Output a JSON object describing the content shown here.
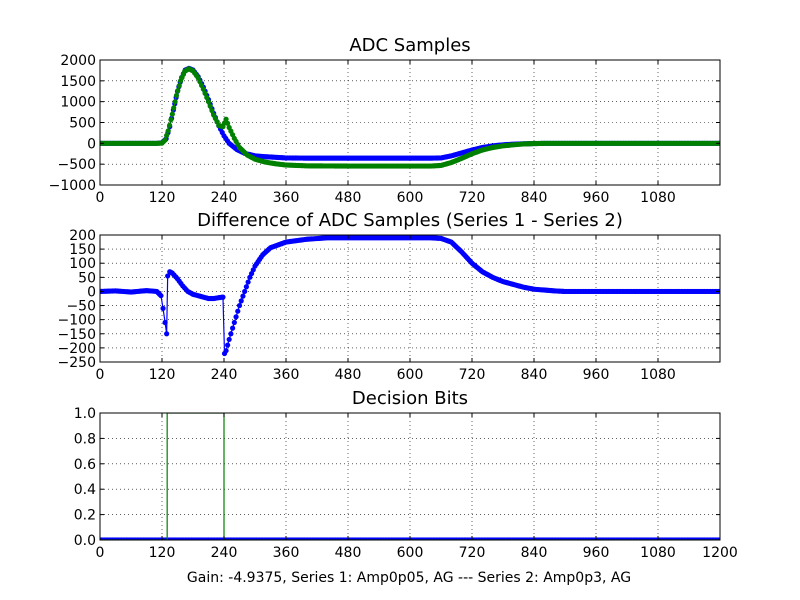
{
  "caption": "Gain: -4.9375, Series 1: Amp0p05, AG --- Series 2: Amp0p3, AG",
  "chart_data": [
    {
      "type": "line",
      "title": "ADC Samples",
      "xlabel": "",
      "ylabel": "",
      "xlim": [
        0,
        1200
      ],
      "ylim": [
        -1000,
        2000
      ],
      "grid": true,
      "xticks": [
        0,
        120,
        240,
        360,
        480,
        600,
        720,
        840,
        960,
        1080
      ],
      "yticks": [
        -1000,
        -500,
        0,
        500,
        1000,
        1500,
        2000
      ],
      "xtick_labels": [
        "0",
        "120",
        "240",
        "360",
        "480",
        "600",
        "720",
        "840",
        "960",
        "1080"
      ],
      "ytick_labels": [
        "−1000",
        "−500",
        "0",
        "500",
        "1000",
        "1500",
        "2000"
      ],
      "series": [
        {
          "name": "Series 1",
          "color": "#0000ff",
          "marker": "dot",
          "points": [
            [
              0,
              0
            ],
            [
              110,
              0
            ],
            [
              120,
              15
            ],
            [
              128,
              110
            ],
            [
              135,
              400
            ],
            [
              142,
              800
            ],
            [
              150,
              1250
            ],
            [
              158,
              1580
            ],
            [
              165,
              1760
            ],
            [
              172,
              1800
            ],
            [
              180,
              1760
            ],
            [
              190,
              1600
            ],
            [
              200,
              1350
            ],
            [
              210,
              1050
            ],
            [
              220,
              720
            ],
            [
              230,
              420
            ],
            [
              240,
              180
            ],
            [
              250,
              0
            ],
            [
              265,
              -150
            ],
            [
              280,
              -240
            ],
            [
              300,
              -300
            ],
            [
              320,
              -320
            ],
            [
              340,
              -335
            ],
            [
              360,
              -350
            ],
            [
              400,
              -355
            ],
            [
              480,
              -355
            ],
            [
              560,
              -355
            ],
            [
              640,
              -355
            ],
            [
              660,
              -350
            ],
            [
              680,
              -300
            ],
            [
              700,
              -230
            ],
            [
              720,
              -160
            ],
            [
              740,
              -100
            ],
            [
              760,
              -60
            ],
            [
              780,
              -35
            ],
            [
              800,
              -20
            ],
            [
              820,
              -10
            ],
            [
              840,
              -5
            ],
            [
              860,
              0
            ],
            [
              1200,
              0
            ]
          ]
        },
        {
          "name": "Series 2",
          "color": "#008000",
          "marker": "dot",
          "points": [
            [
              0,
              0
            ],
            [
              110,
              0
            ],
            [
              120,
              5
            ],
            [
              126,
              80
            ],
            [
              132,
              300
            ],
            [
              140,
              700
            ],
            [
              148,
              1150
            ],
            [
              156,
              1500
            ],
            [
              164,
              1730
            ],
            [
              172,
              1790
            ],
            [
              180,
              1740
            ],
            [
              190,
              1570
            ],
            [
              200,
              1300
            ],
            [
              210,
              1000
            ],
            [
              220,
              680
            ],
            [
              230,
              430
            ],
            [
              238,
              400
            ],
            [
              244,
              580
            ],
            [
              250,
              380
            ],
            [
              260,
              120
            ],
            [
              270,
              -100
            ],
            [
              285,
              -280
            ],
            [
              300,
              -380
            ],
            [
              320,
              -450
            ],
            [
              340,
              -490
            ],
            [
              360,
              -520
            ],
            [
              400,
              -540
            ],
            [
              480,
              -545
            ],
            [
              560,
              -545
            ],
            [
              640,
              -545
            ],
            [
              660,
              -530
            ],
            [
              680,
              -460
            ],
            [
              700,
              -360
            ],
            [
              720,
              -250
            ],
            [
              740,
              -160
            ],
            [
              760,
              -100
            ],
            [
              780,
              -60
            ],
            [
              800,
              -35
            ],
            [
              820,
              -15
            ],
            [
              840,
              -5
            ],
            [
              860,
              0
            ],
            [
              1200,
              0
            ]
          ]
        }
      ]
    },
    {
      "type": "line",
      "title": "Difference of ADC Samples (Series 1 - Series 2)",
      "xlabel": "",
      "ylabel": "",
      "xlim": [
        0,
        1200
      ],
      "ylim": [
        -250,
        200
      ],
      "grid": true,
      "xticks": [
        0,
        120,
        240,
        360,
        480,
        600,
        720,
        840,
        960,
        1080
      ],
      "yticks": [
        -250,
        -200,
        -150,
        -100,
        -50,
        0,
        50,
        100,
        150,
        200
      ],
      "xtick_labels": [
        "0",
        "120",
        "240",
        "360",
        "480",
        "600",
        "720",
        "840",
        "960",
        "1080"
      ],
      "ytick_labels": [
        "−250",
        "−200",
        "−150",
        "−100",
        "−50",
        "0",
        "50",
        "100",
        "150",
        "200"
      ],
      "series": [
        {
          "name": "Difference",
          "color": "#0000ff",
          "marker": "dot",
          "points": [
            [
              0,
              0
            ],
            [
              30,
              2
            ],
            [
              60,
              -2
            ],
            [
              90,
              3
            ],
            [
              110,
              0
            ],
            [
              118,
              -15
            ],
            [
              122,
              -60
            ],
            [
              126,
              -110
            ],
            [
              129,
              -150
            ],
            [
              131,
              55
            ],
            [
              135,
              70
            ],
            [
              140,
              65
            ],
            [
              150,
              45
            ],
            [
              160,
              20
            ],
            [
              170,
              0
            ],
            [
              180,
              -10
            ],
            [
              190,
              -15
            ],
            [
              200,
              -20
            ],
            [
              210,
              -25
            ],
            [
              220,
              -25
            ],
            [
              230,
              -22
            ],
            [
              238,
              -20
            ],
            [
              241,
              -220
            ],
            [
              244,
              -210
            ],
            [
              250,
              -170
            ],
            [
              260,
              -110
            ],
            [
              270,
              -50
            ],
            [
              280,
              0
            ],
            [
              290,
              50
            ],
            [
              300,
              90
            ],
            [
              315,
              130
            ],
            [
              330,
              155
            ],
            [
              360,
              175
            ],
            [
              400,
              185
            ],
            [
              440,
              190
            ],
            [
              480,
              190
            ],
            [
              520,
              190
            ],
            [
              560,
              190
            ],
            [
              600,
              190
            ],
            [
              640,
              190
            ],
            [
              660,
              188
            ],
            [
              680,
              175
            ],
            [
              700,
              140
            ],
            [
              720,
              100
            ],
            [
              740,
              70
            ],
            [
              760,
              50
            ],
            [
              780,
              35
            ],
            [
              800,
              25
            ],
            [
              820,
              15
            ],
            [
              840,
              8
            ],
            [
              860,
              5
            ],
            [
              880,
              2
            ],
            [
              900,
              0
            ],
            [
              1200,
              0
            ]
          ]
        }
      ]
    },
    {
      "type": "line",
      "title": "Decision Bits",
      "xlabel": "",
      "ylabel": "",
      "xlim": [
        0,
        1200
      ],
      "ylim": [
        0,
        1
      ],
      "grid": true,
      "xticks": [
        0,
        120,
        240,
        360,
        480,
        600,
        720,
        840,
        960,
        1080,
        1200
      ],
      "yticks": [
        0,
        0.2,
        0.4,
        0.6,
        0.8,
        1.0
      ],
      "xtick_labels": [
        "0",
        "120",
        "240",
        "360",
        "480",
        "600",
        "720",
        "840",
        "960",
        "1080",
        "1200"
      ],
      "ytick_labels": [
        "0.0",
        "0.2",
        "0.4",
        "0.6",
        "0.8",
        "1.0"
      ],
      "series": [
        {
          "name": "Series 1",
          "color": "#0000ff",
          "marker": "dot",
          "points": [
            [
              0,
              0
            ],
            [
              1200,
              0
            ]
          ]
        },
        {
          "name": "Series 2",
          "color": "#008000",
          "marker": "none",
          "points": [
            [
              0,
              0
            ],
            [
              130,
              0
            ],
            [
              130,
              1
            ],
            [
              240,
              1
            ],
            [
              240,
              0
            ],
            [
              1200,
              0
            ]
          ]
        }
      ]
    }
  ]
}
